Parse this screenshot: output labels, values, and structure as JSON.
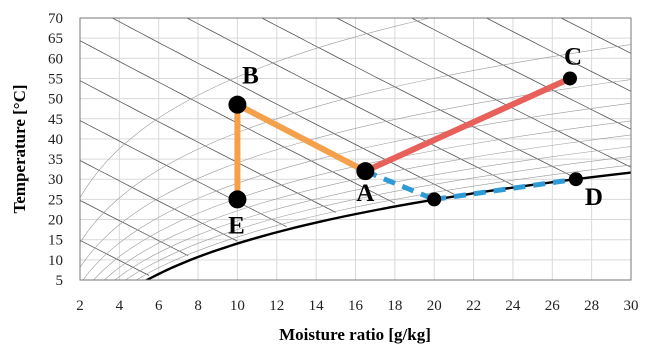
{
  "chart_data": {
    "type": "line",
    "xlabel": "Moisture ratio [g/kg]",
    "ylabel": "Temperature [°C]",
    "xlim": [
      2,
      30
    ],
    "ylim": [
      5,
      70
    ],
    "xticks": [
      2,
      4,
      6,
      8,
      10,
      12,
      14,
      16,
      18,
      20,
      22,
      24,
      26,
      28,
      30
    ],
    "yticks": [
      5,
      10,
      15,
      20,
      25,
      30,
      35,
      40,
      45,
      50,
      55,
      60,
      65,
      70
    ],
    "grid": true,
    "points": [
      {
        "label": "A",
        "x": 16.5,
        "y": 32
      },
      {
        "label": "B",
        "x": 10,
        "y": 48.5
      },
      {
        "label": "C",
        "x": 26.9,
        "y": 55
      },
      {
        "label": "D",
        "x": 27.2,
        "y": 30
      },
      {
        "label": "E",
        "x": 10,
        "y": 25
      },
      {
        "label": "",
        "x": 20,
        "y": 25
      }
    ],
    "segments": [
      {
        "from": "B",
        "to": "A",
        "style": "solid",
        "color": "#f5a04a"
      },
      {
        "from": "B",
        "to": "E",
        "style": "solid",
        "color": "#f5a04a"
      },
      {
        "from": "A",
        "to": "C",
        "style": "solid",
        "color": "#e8605a"
      },
      {
        "from_xy": [
          16.5,
          32
        ],
        "to_xy": [
          20,
          25
        ],
        "style": "dashed",
        "color": "#2e9bd6"
      },
      {
        "from_xy": [
          20,
          25
        ],
        "to_xy": [
          27.2,
          30
        ],
        "style": "dashed",
        "color": "#2e9bd6"
      }
    ],
    "saturation_curve_color": "#000000"
  }
}
